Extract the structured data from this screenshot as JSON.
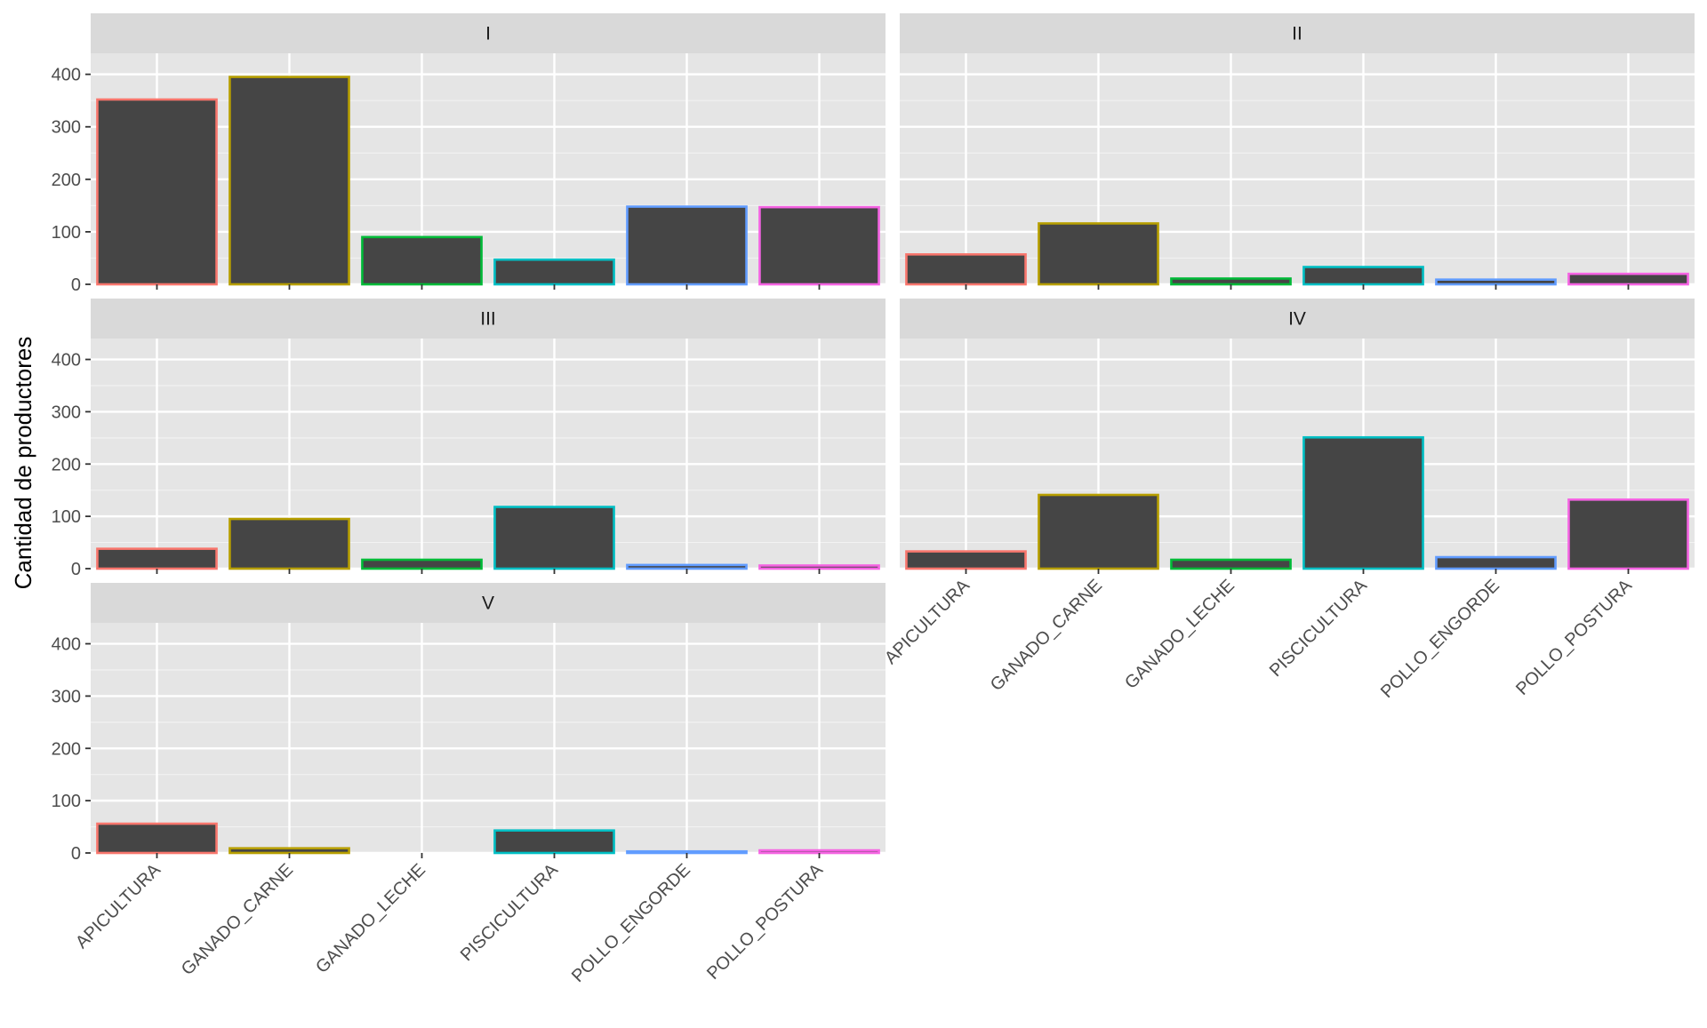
{
  "chart_data": {
    "type": "bar",
    "ylabel": "Cantidad de productores",
    "xlabel": "",
    "ylim": [
      0,
      440
    ],
    "y_ticks": [
      "0",
      "100",
      "200",
      "300",
      "400"
    ],
    "categories": [
      "APICULTURA",
      "GANADO_CARNE",
      "GANADO_LECHE",
      "PISCICULTURA",
      "POLLO_ENGORDE",
      "POLLO_POSTURA"
    ],
    "category_colors": [
      "#F8766D",
      "#B79F00",
      "#00BA38",
      "#00BFC4",
      "#619CFF",
      "#F564E3"
    ],
    "bar_fill": "#454545",
    "panel_background": "#E5E5E5",
    "strip_background": "#D9D9D9",
    "grid": true,
    "legend": "none",
    "panels": [
      {
        "name": "I",
        "values": [
          352,
          395,
          90,
          47,
          148,
          147
        ]
      },
      {
        "name": "II",
        "values": [
          57,
          116,
          11,
          33,
          9,
          20
        ]
      },
      {
        "name": "III",
        "values": [
          38,
          95,
          17,
          118,
          7,
          6
        ]
      },
      {
        "name": "IV",
        "values": [
          33,
          141,
          17,
          251,
          22,
          132
        ]
      },
      {
        "name": "V",
        "values": [
          56,
          9,
          0,
          43,
          3,
          5
        ]
      }
    ]
  }
}
